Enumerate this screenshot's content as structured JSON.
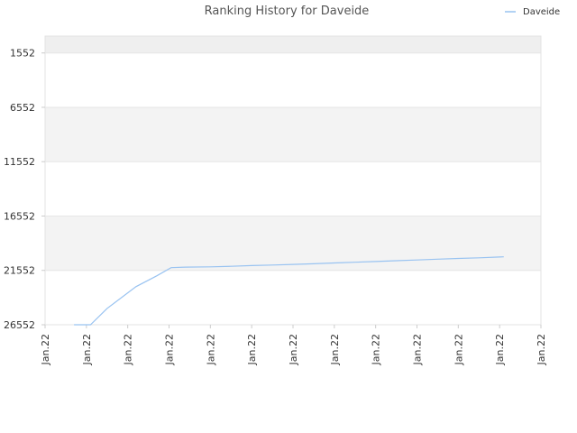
{
  "chart_data": {
    "type": "line",
    "title": "Ranking History for Daveide",
    "xlabel": "",
    "ylabel": "",
    "y_inverted": true,
    "ylim": [
      26552,
      0
    ],
    "yticks": [
      1552,
      6552,
      11552,
      16552,
      21552,
      26552
    ],
    "ytick_labels": [
      "1552",
      "6552",
      "11552",
      "16552",
      "21552",
      "26552"
    ],
    "xtick_labels": [
      "Jan.22",
      "Jan.22",
      "Jan.22",
      "Jan.22",
      "Jan.22",
      "Jan.22",
      "Jan.22",
      "Jan.22",
      "Jan.22",
      "Jan.22",
      "Jan.22",
      "Jan.22",
      "Jan.22"
    ],
    "grid": true,
    "legend_position": "top-right",
    "series": [
      {
        "name": "Daveide",
        "color": "#99c3f1",
        "x": [
          0.7,
          1.1,
          1.5,
          2.2,
          2.7,
          3.05,
          3.4,
          4,
          4.5,
          5,
          5.5,
          6,
          6.5,
          7,
          7.5,
          8,
          8.5,
          9,
          9.5,
          10,
          10.5,
          11,
          11.1
        ],
        "values": [
          26552,
          26552,
          25052,
          23052,
          22052,
          21302,
          21252,
          21222,
          21172,
          21112,
          21062,
          21002,
          20942,
          20872,
          20802,
          20732,
          20662,
          20592,
          20522,
          20452,
          20392,
          20322,
          20302
        ]
      }
    ]
  }
}
